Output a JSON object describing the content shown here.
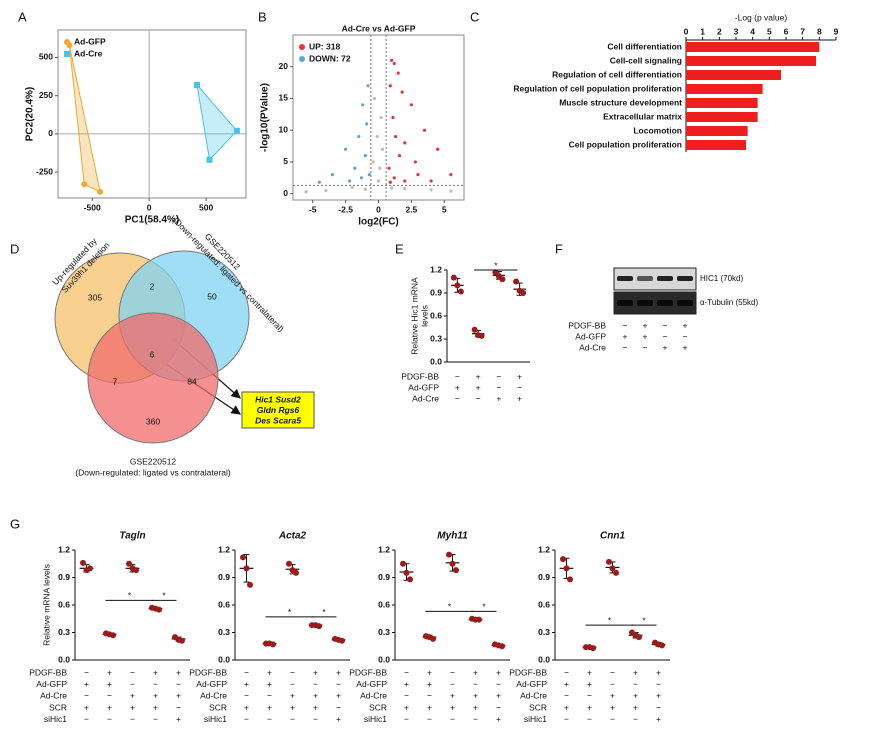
{
  "chart_data": [
    {
      "type": "scatter",
      "panel": "A",
      "xlabel": "PC1(58.4%)",
      "ylabel": "PC2(20.4%)",
      "xlim": [
        -800,
        850
      ],
      "ylim": [
        -420,
        680
      ],
      "xticks": [
        -500,
        0,
        500
      ],
      "yticks": [
        -250,
        0,
        250,
        500
      ],
      "origin_lines": true,
      "hull": true,
      "legend": "top-left",
      "series": [
        {
          "name": "Ad-GFP",
          "color": "#f0a830",
          "marker": "circle",
          "x": [
            -700,
            -570,
            -430
          ],
          "values": [
            580,
            -330,
            -380
          ]
        },
        {
          "name": "Ad-Cre",
          "color": "#45c3ea",
          "marker": "square",
          "x": [
            420,
            770,
            530
          ],
          "values": [
            320,
            20,
            -170
          ]
        }
      ]
    },
    {
      "type": "volcano",
      "panel": "B",
      "title": "Ad-Cre vs Ad-GFP",
      "xlabel": "log2(FC)",
      "ylabel": "-log10(PValue)",
      "xlim": [
        -6.5,
        6.5
      ],
      "ylim": [
        -1,
        25
      ],
      "xticks": [
        -5,
        -2.5,
        0,
        2.5,
        5
      ],
      "yticks": [
        0,
        5,
        10,
        15,
        20
      ],
      "vlines": [
        -0.58,
        0.58
      ],
      "hline": 1.3,
      "legend": "top-left",
      "series": [
        {
          "name": "UP: 318",
          "color": "#e8333a",
          "x": [
            1.0,
            1.2,
            1.5,
            0.9,
            1.8,
            2.5,
            1.1,
            3.5,
            1.3,
            2.0,
            4.5,
            1.6,
            2.8,
            5.5,
            0.8,
            3.0,
            1.2,
            2.0,
            4.0,
            0.9
          ],
          "values": [
            21,
            20.5,
            19,
            17,
            16,
            14,
            12,
            10,
            9,
            8,
            7,
            6,
            5,
            3,
            4,
            3,
            2.5,
            2,
            2,
            1.8
          ]
        },
        {
          "name": "DOWN: 72",
          "color": "#5aa5d8",
          "x": [
            -0.8,
            -1.2,
            -0.9,
            -1.5,
            -2.5,
            -1.0,
            -3.5,
            -1.8,
            -0.7,
            -2.2,
            -4.5,
            -1.3
          ],
          "values": [
            17,
            14,
            11,
            9,
            7,
            6,
            3,
            4,
            3,
            2,
            1.8,
            2.5
          ]
        },
        {
          "color": "#bbbbbb",
          "x": [
            -0.3,
            0.2,
            -0.1,
            0.3,
            -0.4,
            0.1,
            -2.0,
            2.0,
            -4.0,
            4.0,
            -5.5,
            5.5,
            0.0,
            -1.0,
            1.0
          ],
          "values": [
            15,
            12,
            9,
            7,
            5,
            4,
            1,
            0.8,
            0.5,
            0.6,
            0.3,
            0.4,
            2,
            0.7,
            0.9
          ]
        }
      ]
    },
    {
      "type": "hbar",
      "panel": "C",
      "xlabel": "-Log (p value)",
      "color": "#f01f1f",
      "xlim": [
        0,
        9
      ],
      "xticks": [
        0,
        1,
        2,
        3,
        4,
        5,
        6,
        7,
        8,
        9
      ],
      "categories": [
        "Cell differentiation",
        "Cell-cell signaling",
        "Regulation of cell differentiation",
        "Regulation of cell population proliferation",
        "Muscle structure development",
        "Extracellular matrix",
        "Locomotion",
        "Cell population proliferation"
      ],
      "values": [
        8.0,
        7.8,
        5.7,
        4.6,
        4.3,
        4.3,
        3.7,
        3.6
      ]
    },
    {
      "type": "venn",
      "panel": "D",
      "sets": [
        {
          "label": [
            "Up-regulated by",
            "Suv39h1 deletion"
          ],
          "color": "#f6c26b"
        },
        {
          "label": [
            "GSE220512",
            "(Down-regulated: ligated vs contralateral)"
          ],
          "color": "#7fd3f0"
        },
        {
          "label": [
            "GSE220512",
            "(Down-regulated: ligated vs contralateral)"
          ],
          "color": "#f26b6b"
        }
      ],
      "regions": [
        305,
        2,
        50,
        6,
        7,
        84,
        360
      ],
      "highlight": [
        "Hic1 Susd2",
        "Gldn Rgs6",
        "Des Scara5"
      ]
    },
    {
      "type": "dots",
      "panel": "E",
      "ylabel": [
        "Relative Hic1 mRNA",
        "levels"
      ],
      "color": "#9b1b1b",
      "ylim": [
        0,
        1.2
      ],
      "yticks": [
        {
          "value": 0,
          "label": "0.0"
        },
        0.3,
        0.6,
        0.9,
        1.2
      ],
      "groups": [
        {
          "values": [
            1.1,
            1.0,
            0.92
          ],
          "mean": 1.0,
          "error": 0.09
        },
        {
          "values": [
            0.42,
            0.35,
            0.34
          ],
          "mean": 0.37,
          "error": 0.04
        },
        {
          "values": [
            1.17,
            1.12,
            1.08
          ],
          "mean": 1.13,
          "error": 0.05
        },
        {
          "values": [
            1.05,
            0.93,
            0.9
          ],
          "mean": 0.95,
          "error": 0.08
        }
      ],
      "sig": [
        {
          "groups": [
            1,
            3
          ],
          "y": 1.2,
          "label": "*"
        }
      ],
      "conditions": [
        {
          "name": "PDGF-BB",
          "values": [
            "−",
            "+",
            "−",
            "+"
          ]
        },
        {
          "name": "Ad-GFP",
          "values": [
            "+",
            "+",
            "−",
            "−"
          ]
        },
        {
          "name": "Ad-Cre",
          "values": [
            "−",
            "−",
            "+",
            "+"
          ]
        }
      ]
    },
    {
      "type": "dots",
      "panel": "G",
      "title": "Tagln",
      "ylabel": [
        "Relative mRNA levels"
      ],
      "color": "#9b1b1b",
      "ylim": [
        0,
        1.2
      ],
      "yticks": [
        {
          "value": 0,
          "label": "0.0"
        },
        0.3,
        0.6,
        0.9,
        1.2
      ],
      "groups": [
        {
          "values": [
            1.06,
            0.98,
            1.0
          ],
          "mean": 1.0,
          "error": 0.04
        },
        {
          "values": [
            0.29,
            0.28,
            0.27
          ],
          "mean": 0.28,
          "error": 0.01
        },
        {
          "values": [
            1.05,
            1.0,
            0.98
          ],
          "mean": 1.0,
          "error": 0.04
        },
        {
          "values": [
            0.57,
            0.56,
            0.55
          ],
          "mean": 0.56,
          "error": 0.01
        },
        {
          "values": [
            0.25,
            0.22,
            0.21
          ],
          "mean": 0.23,
          "error": 0.02
        }
      ],
      "sig": [
        {
          "groups": [
            1,
            3
          ],
          "y": 0.65,
          "label": "*"
        },
        {
          "groups": [
            3,
            4
          ],
          "y": 0.65,
          "label": "*"
        }
      ],
      "conditions": [
        {
          "name": "PDGF-BB",
          "values": [
            "−",
            "+",
            "−",
            "+",
            "+"
          ]
        },
        {
          "name": "Ad-GFP",
          "values": [
            "+",
            "+",
            "−",
            "−",
            "−"
          ]
        },
        {
          "name": "Ad-Cre",
          "values": [
            "−",
            "−",
            "+",
            "+",
            "+"
          ]
        },
        {
          "name": "SCR",
          "values": [
            "+",
            "+",
            "+",
            "+",
            "−"
          ]
        },
        {
          "name": "siHic1",
          "values": [
            "−",
            "−",
            "−",
            "−",
            "+"
          ]
        }
      ]
    },
    {
      "type": "dots",
      "title": "Acta2",
      "color": "#9b1b1b",
      "ylim": [
        0,
        1.2
      ],
      "yticks": [
        {
          "value": 0,
          "label": "0.0"
        },
        0.3,
        0.6,
        0.9,
        1.2
      ],
      "groups": [
        {
          "values": [
            1.12,
            1.0,
            0.82
          ],
          "mean": 1.0,
          "error": 0.15
        },
        {
          "values": [
            0.18,
            0.18,
            0.17
          ],
          "mean": 0.18,
          "error": 0.01
        },
        {
          "values": [
            1.05,
            0.98,
            0.95
          ],
          "mean": 0.99,
          "error": 0.05
        },
        {
          "values": [
            0.38,
            0.38,
            0.37
          ],
          "mean": 0.38,
          "error": 0.01
        },
        {
          "values": [
            0.23,
            0.22,
            0.21
          ],
          "mean": 0.22,
          "error": 0.01
        }
      ],
      "sig": [
        {
          "groups": [
            1,
            3
          ],
          "y": 0.47,
          "label": "*"
        },
        {
          "groups": [
            3,
            4
          ],
          "y": 0.47,
          "label": "*"
        }
      ],
      "conditions": [
        {
          "name": "PDGF-BB",
          "values": [
            "−",
            "+",
            "−",
            "+",
            "+"
          ]
        },
        {
          "name": "Ad-GFP",
          "values": [
            "+",
            "+",
            "−",
            "−",
            "−"
          ]
        },
        {
          "name": "Ad-Cre",
          "values": [
            "−",
            "−",
            "+",
            "+",
            "+"
          ]
        },
        {
          "name": "SCR",
          "values": [
            "+",
            "+",
            "+",
            "+",
            "−"
          ]
        },
        {
          "name": "siHic1",
          "values": [
            "−",
            "−",
            "−",
            "−",
            "+"
          ]
        }
      ]
    },
    {
      "type": "dots",
      "title": "Myh11",
      "color": "#9b1b1b",
      "ylim": [
        0,
        1.2
      ],
      "yticks": [
        {
          "value": 0,
          "label": "0.0"
        },
        0.3,
        0.6,
        0.9,
        1.2
      ],
      "groups": [
        {
          "values": [
            1.05,
            0.95,
            0.88
          ],
          "mean": 0.96,
          "error": 0.09
        },
        {
          "values": [
            0.26,
            0.25,
            0.23
          ],
          "mean": 0.25,
          "error": 0.02
        },
        {
          "values": [
            1.15,
            1.05,
            0.98
          ],
          "mean": 1.06,
          "error": 0.09
        },
        {
          "values": [
            0.45,
            0.44,
            0.44
          ],
          "mean": 0.44,
          "error": 0.01
        },
        {
          "values": [
            0.17,
            0.16,
            0.15
          ],
          "mean": 0.16,
          "error": 0.01
        }
      ],
      "sig": [
        {
          "groups": [
            1,
            3
          ],
          "y": 0.53,
          "label": "*"
        },
        {
          "groups": [
            3,
            4
          ],
          "y": 0.53,
          "label": "*"
        }
      ],
      "conditions": [
        {
          "name": "PDGF-BB",
          "values": [
            "−",
            "+",
            "−",
            "+",
            "+"
          ]
        },
        {
          "name": "Ad-GFP",
          "values": [
            "+",
            "+",
            "−",
            "−",
            "−"
          ]
        },
        {
          "name": "Ad-Cre",
          "values": [
            "−",
            "−",
            "+",
            "+",
            "+"
          ]
        },
        {
          "name": "SCR",
          "values": [
            "+",
            "+",
            "+",
            "+",
            "−"
          ]
        },
        {
          "name": "siHic1",
          "values": [
            "−",
            "−",
            "−",
            "−",
            "+"
          ]
        }
      ]
    },
    {
      "type": "dots",
      "title": "Cnn1",
      "color": "#9b1b1b",
      "ylim": [
        0,
        1.2
      ],
      "yticks": [
        {
          "value": 0,
          "label": "0.0"
        },
        0.3,
        0.6,
        0.9,
        1.2
      ],
      "groups": [
        {
          "values": [
            1.1,
            1.0,
            0.88
          ],
          "mean": 1.0,
          "error": 0.11
        },
        {
          "values": [
            0.14,
            0.14,
            0.13
          ],
          "mean": 0.14,
          "error": 0.01
        },
        {
          "values": [
            1.07,
            1.0,
            0.95
          ],
          "mean": 1.01,
          "error": 0.06
        },
        {
          "values": [
            0.3,
            0.27,
            0.25
          ],
          "mean": 0.27,
          "error": 0.03
        },
        {
          "values": [
            0.19,
            0.17,
            0.16
          ],
          "mean": 0.17,
          "error": 0.02
        }
      ],
      "sig": [
        {
          "groups": [
            1,
            3
          ],
          "y": 0.38,
          "label": "*"
        },
        {
          "groups": [
            3,
            4
          ],
          "y": 0.38,
          "label": "*"
        }
      ],
      "conditions": [
        {
          "name": "PDGF-BB",
          "values": [
            "−",
            "+",
            "−",
            "+",
            "+"
          ]
        },
        {
          "name": "Ad-GFP",
          "values": [
            "+",
            "+",
            "−",
            "−",
            "−"
          ]
        },
        {
          "name": "Ad-Cre",
          "values": [
            "−",
            "−",
            "+",
            "+",
            "+"
          ]
        },
        {
          "name": "SCR",
          "values": [
            "+",
            "+",
            "+",
            "+",
            "−"
          ]
        },
        {
          "name": "siHic1",
          "values": [
            "−",
            "−",
            "−",
            "−",
            "+"
          ]
        }
      ]
    }
  ],
  "blot": {
    "panel": "F",
    "bands": [
      "HIC1 (70kd)",
      "α-Tubulin (55kd)"
    ],
    "conditions": [
      {
        "name": "PDGF-BB",
        "values": [
          "−",
          "+",
          "−",
          "+"
        ]
      },
      {
        "name": "Ad-GFP",
        "values": [
          "+",
          "+",
          "−",
          "−"
        ]
      },
      {
        "name": "Ad-Cre",
        "values": [
          "−",
          "−",
          "+",
          "+"
        ]
      }
    ]
  }
}
